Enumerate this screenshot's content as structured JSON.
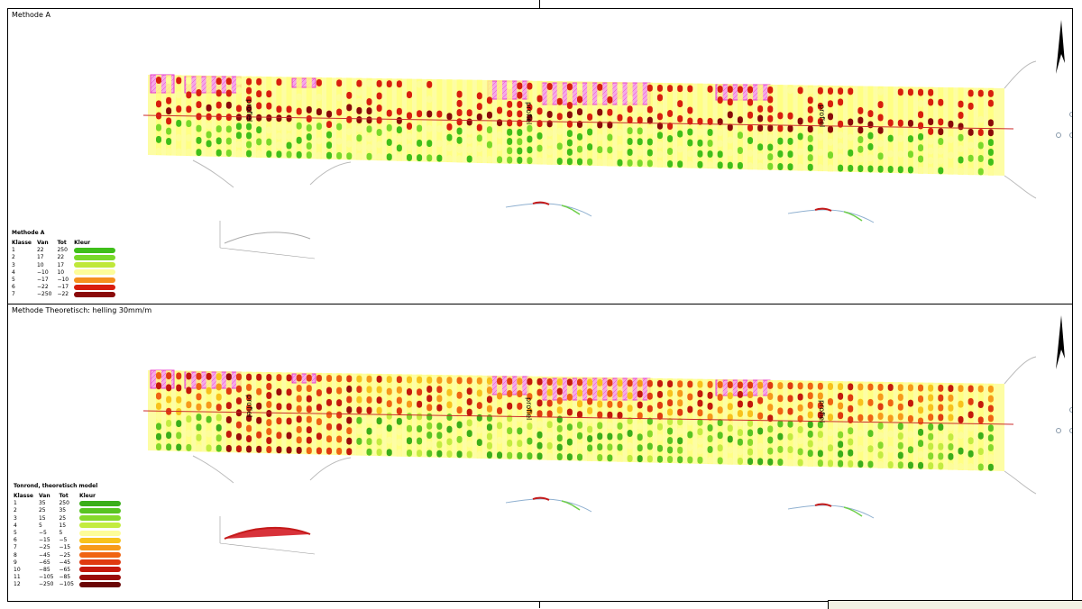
{
  "panel_top": {
    "title": "Methode A",
    "labels": [
      "profiel",
      "profiel",
      "profiel"
    ],
    "legend": {
      "title": "Methode A",
      "headers": [
        "Klasse",
        "Van",
        "Tot",
        "Kleur"
      ],
      "rows": [
        {
          "klasse": "1",
          "van": "22",
          "tot": "250",
          "color": "#3fbf1a"
        },
        {
          "klasse": "2",
          "van": "17",
          "tot": "22",
          "color": "#79d92a"
        },
        {
          "klasse": "3",
          "van": "10",
          "tot": "17",
          "color": "#bfe83a"
        },
        {
          "klasse": "4",
          "van": "−10",
          "tot": "10",
          "color": "#fdfd9a"
        },
        {
          "klasse": "5",
          "van": "−17",
          "tot": "−10",
          "color": "#f5901e"
        },
        {
          "klasse": "6",
          "van": "−22",
          "tot": "−17",
          "color": "#d81e0e"
        },
        {
          "klasse": "7",
          "van": "−250",
          "tot": "−22",
          "color": "#8a0a0a"
        }
      ]
    }
  },
  "panel_bottom": {
    "title": "Methode Theoretisch: helling 30mm/m",
    "labels": [
      "profiel",
      "profiel",
      "profiel"
    ],
    "legend": {
      "title": "Tonrond, theoretisch model",
      "headers": [
        "Klasse",
        "Van",
        "Tot",
        "Kleur"
      ],
      "rows": [
        {
          "klasse": "1",
          "van": "35",
          "tot": "250",
          "color": "#3aae1a"
        },
        {
          "klasse": "2",
          "van": "25",
          "tot": "35",
          "color": "#58c422"
        },
        {
          "klasse": "3",
          "van": "15",
          "tot": "25",
          "color": "#86d92c"
        },
        {
          "klasse": "4",
          "van": "5",
          "tot": "15",
          "color": "#c3ec40"
        },
        {
          "klasse": "5",
          "van": "−5",
          "tot": "5",
          "color": "#fdfd9a"
        },
        {
          "klasse": "6",
          "van": "−15",
          "tot": "−5",
          "color": "#f8c21c"
        },
        {
          "klasse": "7",
          "van": "−25",
          "tot": "−15",
          "color": "#f79a1a"
        },
        {
          "klasse": "8",
          "van": "−45",
          "tot": "−25",
          "color": "#f06412"
        },
        {
          "klasse": "9",
          "van": "−65",
          "tot": "−45",
          "color": "#e03a10"
        },
        {
          "klasse": "10",
          "van": "−85",
          "tot": "−65",
          "color": "#c4180c"
        },
        {
          "klasse": "11",
          "van": "−105",
          "tot": "−85",
          "color": "#9a0c0a"
        },
        {
          "klasse": "12",
          "van": "−250",
          "tot": "−105",
          "color": "#6a0606"
        }
      ]
    }
  },
  "colors": {
    "road_band": "#fdfd9a",
    "hatch": "#e83ec8",
    "axis_line": "#cc2a2a"
  }
}
